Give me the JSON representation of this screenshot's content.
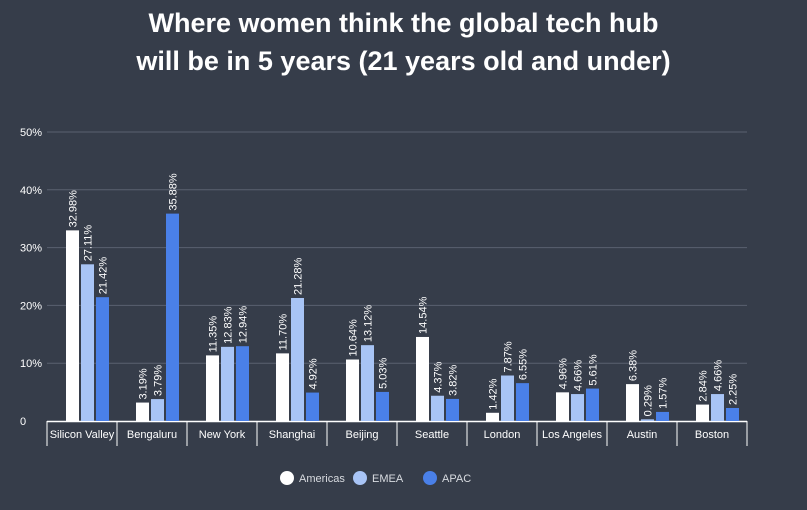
{
  "title_line1": "Where women think the global tech hub",
  "title_line2": "will be in 5 years (21 years old and under)",
  "chart_data": {
    "type": "bar",
    "title": "Where women think the global tech hub will be in 5 years (21 years old and under)",
    "categories": [
      "Silicon Valley",
      "Bengaluru",
      "New York",
      "Shanghai",
      "Beijing",
      "Seattle",
      "London",
      "Los Angeles",
      "Austin",
      "Boston"
    ],
    "series": [
      {
        "name": "Americas",
        "color": "#ffffff",
        "values": [
          32.98,
          3.19,
          11.35,
          11.7,
          10.64,
          14.54,
          1.42,
          4.96,
          6.38,
          2.84
        ],
        "labels": [
          "32.98%",
          "3.19%",
          "11.35%",
          "11.70%",
          "10.64%",
          "14.54%",
          "1.42%",
          "4.96%",
          "6.38%",
          "2.84%"
        ]
      },
      {
        "name": "EMEA",
        "color": "#a8c4f5",
        "values": [
          27.11,
          3.79,
          12.83,
          21.28,
          13.12,
          4.37,
          7.87,
          4.66,
          0.29,
          4.66
        ],
        "labels": [
          "27.11%",
          "3.79%",
          "12.83%",
          "21.28%",
          "13.12%",
          "4.37%",
          "7.87%",
          "4.66%",
          "0.29%",
          "4.66%"
        ]
      },
      {
        "name": "APAC",
        "color": "#4a80e8",
        "values": [
          21.42,
          35.88,
          12.94,
          4.92,
          5.03,
          3.82,
          6.55,
          5.61,
          1.57,
          2.25
        ],
        "labels": [
          "21.42%",
          "35.88%",
          "12.94%",
          "4.92%",
          "5.03%",
          "3.82%",
          "6.55%",
          "5.61%",
          "1.57%",
          "2.25%"
        ]
      }
    ],
    "y_ticks": [
      0,
      10,
      20,
      30,
      40,
      50
    ],
    "y_tick_labels": [
      "0",
      "10%",
      "20%",
      "30%",
      "40%",
      "50%"
    ],
    "ylim": [
      0,
      50
    ],
    "grid": true,
    "legend_position": "bottom-center"
  }
}
